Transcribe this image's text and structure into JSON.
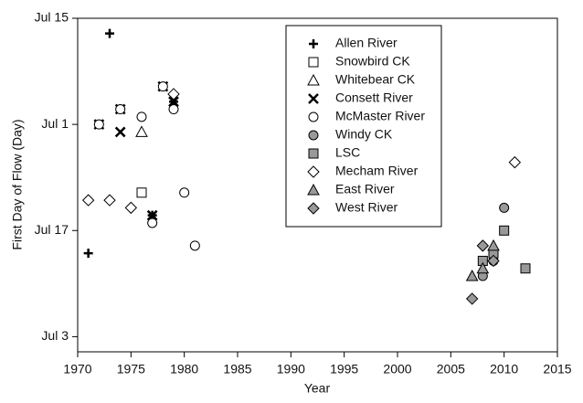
{
  "chart_data": {
    "type": "scatter",
    "xlabel": "Year",
    "ylabel": "First Day of Flow (Day)",
    "xlim": [
      1970,
      2015
    ],
    "xticks": [
      1970,
      1975,
      1980,
      1985,
      1990,
      1995,
      2000,
      2005,
      2010,
      2015
    ],
    "ylim": [
      152,
      196
    ],
    "yticks": [
      {
        "value": 154,
        "label": "Jul 3"
      },
      {
        "value": 168,
        "label": "Jul 17"
      },
      {
        "value": 182,
        "label": "Jul 1"
      },
      {
        "value": 196,
        "label": "Jul 15"
      }
    ],
    "legend": "upper center",
    "series": [
      {
        "name": "Allen River",
        "marker": "plus",
        "color": "#000000",
        "x": [
          1971,
          1972,
          1973,
          1974,
          1977,
          1978,
          1979
        ],
        "values": [
          165,
          182,
          194,
          184,
          170,
          187,
          185
        ]
      },
      {
        "name": "Snowbird CK",
        "marker": "square",
        "color": "#ffffff",
        "x": [
          1976
        ],
        "values": [
          173
        ]
      },
      {
        "name": "Whitebear CK",
        "marker": "triangle",
        "color": "#ffffff",
        "x": [
          1976
        ],
        "values": [
          181
        ]
      },
      {
        "name": "Consett River",
        "marker": "cross",
        "color": "#000000",
        "x": [
          1972,
          1974,
          1974,
          1977,
          1978,
          1979
        ],
        "values": [
          182,
          181,
          184,
          170,
          187,
          185
        ]
      },
      {
        "name": "McMaster River",
        "marker": "circle",
        "color": "#ffffff",
        "x": [
          1972,
          1974,
          1976,
          1977,
          1978,
          1979,
          1980,
          1981
        ],
        "values": [
          182,
          184,
          183,
          169,
          187,
          184,
          173,
          166
        ]
      },
      {
        "name": "Windy CK",
        "marker": "circle",
        "color": "#999999",
        "x": [
          2008,
          2009,
          2010
        ],
        "values": [
          162,
          164,
          171
        ]
      },
      {
        "name": "LSC",
        "marker": "square",
        "color": "#999999",
        "x": [
          2008,
          2009,
          2010,
          2012
        ],
        "values": [
          164,
          165,
          168,
          163
        ]
      },
      {
        "name": "Mecham River",
        "marker": "diamond",
        "color": "#ffffff",
        "x": [
          1971,
          1973,
          1975,
          1979,
          2011
        ],
        "values": [
          172,
          172,
          171,
          186,
          177
        ]
      },
      {
        "name": "East River",
        "marker": "triangle",
        "color": "#999999",
        "x": [
          2007,
          2008,
          2009
        ],
        "values": [
          162,
          163,
          166
        ]
      },
      {
        "name": "West River",
        "marker": "diamond",
        "color": "#999999",
        "x": [
          2007,
          2008,
          2009
        ],
        "values": [
          159,
          166,
          164
        ]
      }
    ]
  }
}
